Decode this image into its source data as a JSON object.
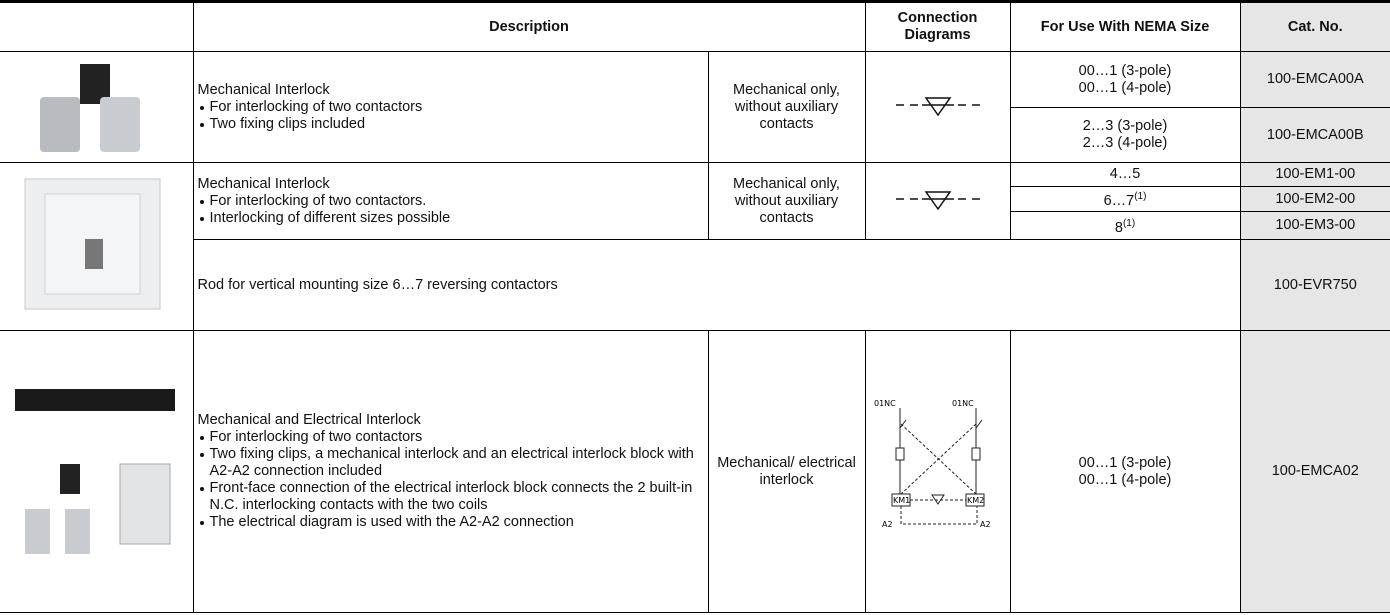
{
  "table": {
    "header": {
      "description": "Description",
      "connection_diagrams": "Connection Diagrams",
      "nema_size": "For Use With NEMA Size",
      "cat_no": "Cat. No."
    },
    "groups": [
      {
        "title": "Mechanical Interlock",
        "bullets": [
          "For interlocking of two contactors",
          "Two fixing clips included"
        ],
        "function": "Mechanical only, without auxiliary contacts",
        "items": [
          {
            "nema": [
              "00…1 (3-pole)",
              "00…1 (4-pole)"
            ],
            "cat_no": "100-EMCA00A"
          },
          {
            "nema": [
              "2…3 (3-pole)",
              "2…3 (4-pole)"
            ],
            "cat_no": "100-EMCA00B"
          }
        ]
      },
      {
        "title": "Mechanical Interlock",
        "bullets": [
          "For interlocking of two contactors.",
          "Interlocking of different sizes possible"
        ],
        "function": "Mechanical only, without auxiliary contacts",
        "items": [
          {
            "nema": [
              "4…5"
            ],
            "cat_no": "100-EM1-00"
          },
          {
            "nema": [
              "6…7"
            ],
            "footnote": "(1)",
            "cat_no": "100-EM2-00"
          },
          {
            "nema": [
              "8"
            ],
            "footnote": "(1)",
            "cat_no": "100-EM3-00"
          }
        ],
        "extra": {
          "text": "Rod for vertical mounting size 6…7 reversing contactors",
          "cat_no": "100-EVR750"
        }
      },
      {
        "title": "Mechanical and Electrical Interlock",
        "bullets": [
          "For interlocking of two contactors",
          "Two fixing clips, a mechanical interlock and an electrical interlock block with A2-A2 connection included",
          "Front-face connection of the electrical interlock block connects the 2 built-in N.C. interlocking contacts with the two coils",
          "The electrical diagram is used with the A2-A2 connection"
        ],
        "function": "Mechanical/ electrical interlock",
        "diagram_labels": [
          "01NC",
          "01NC",
          "KM1",
          "KM2",
          "A2",
          "A2"
        ],
        "items": [
          {
            "nema": [
              "00…1 (3-pole)",
              "00…1 (4-pole)"
            ],
            "cat_no": "100-EMCA02"
          }
        ]
      }
    ]
  }
}
